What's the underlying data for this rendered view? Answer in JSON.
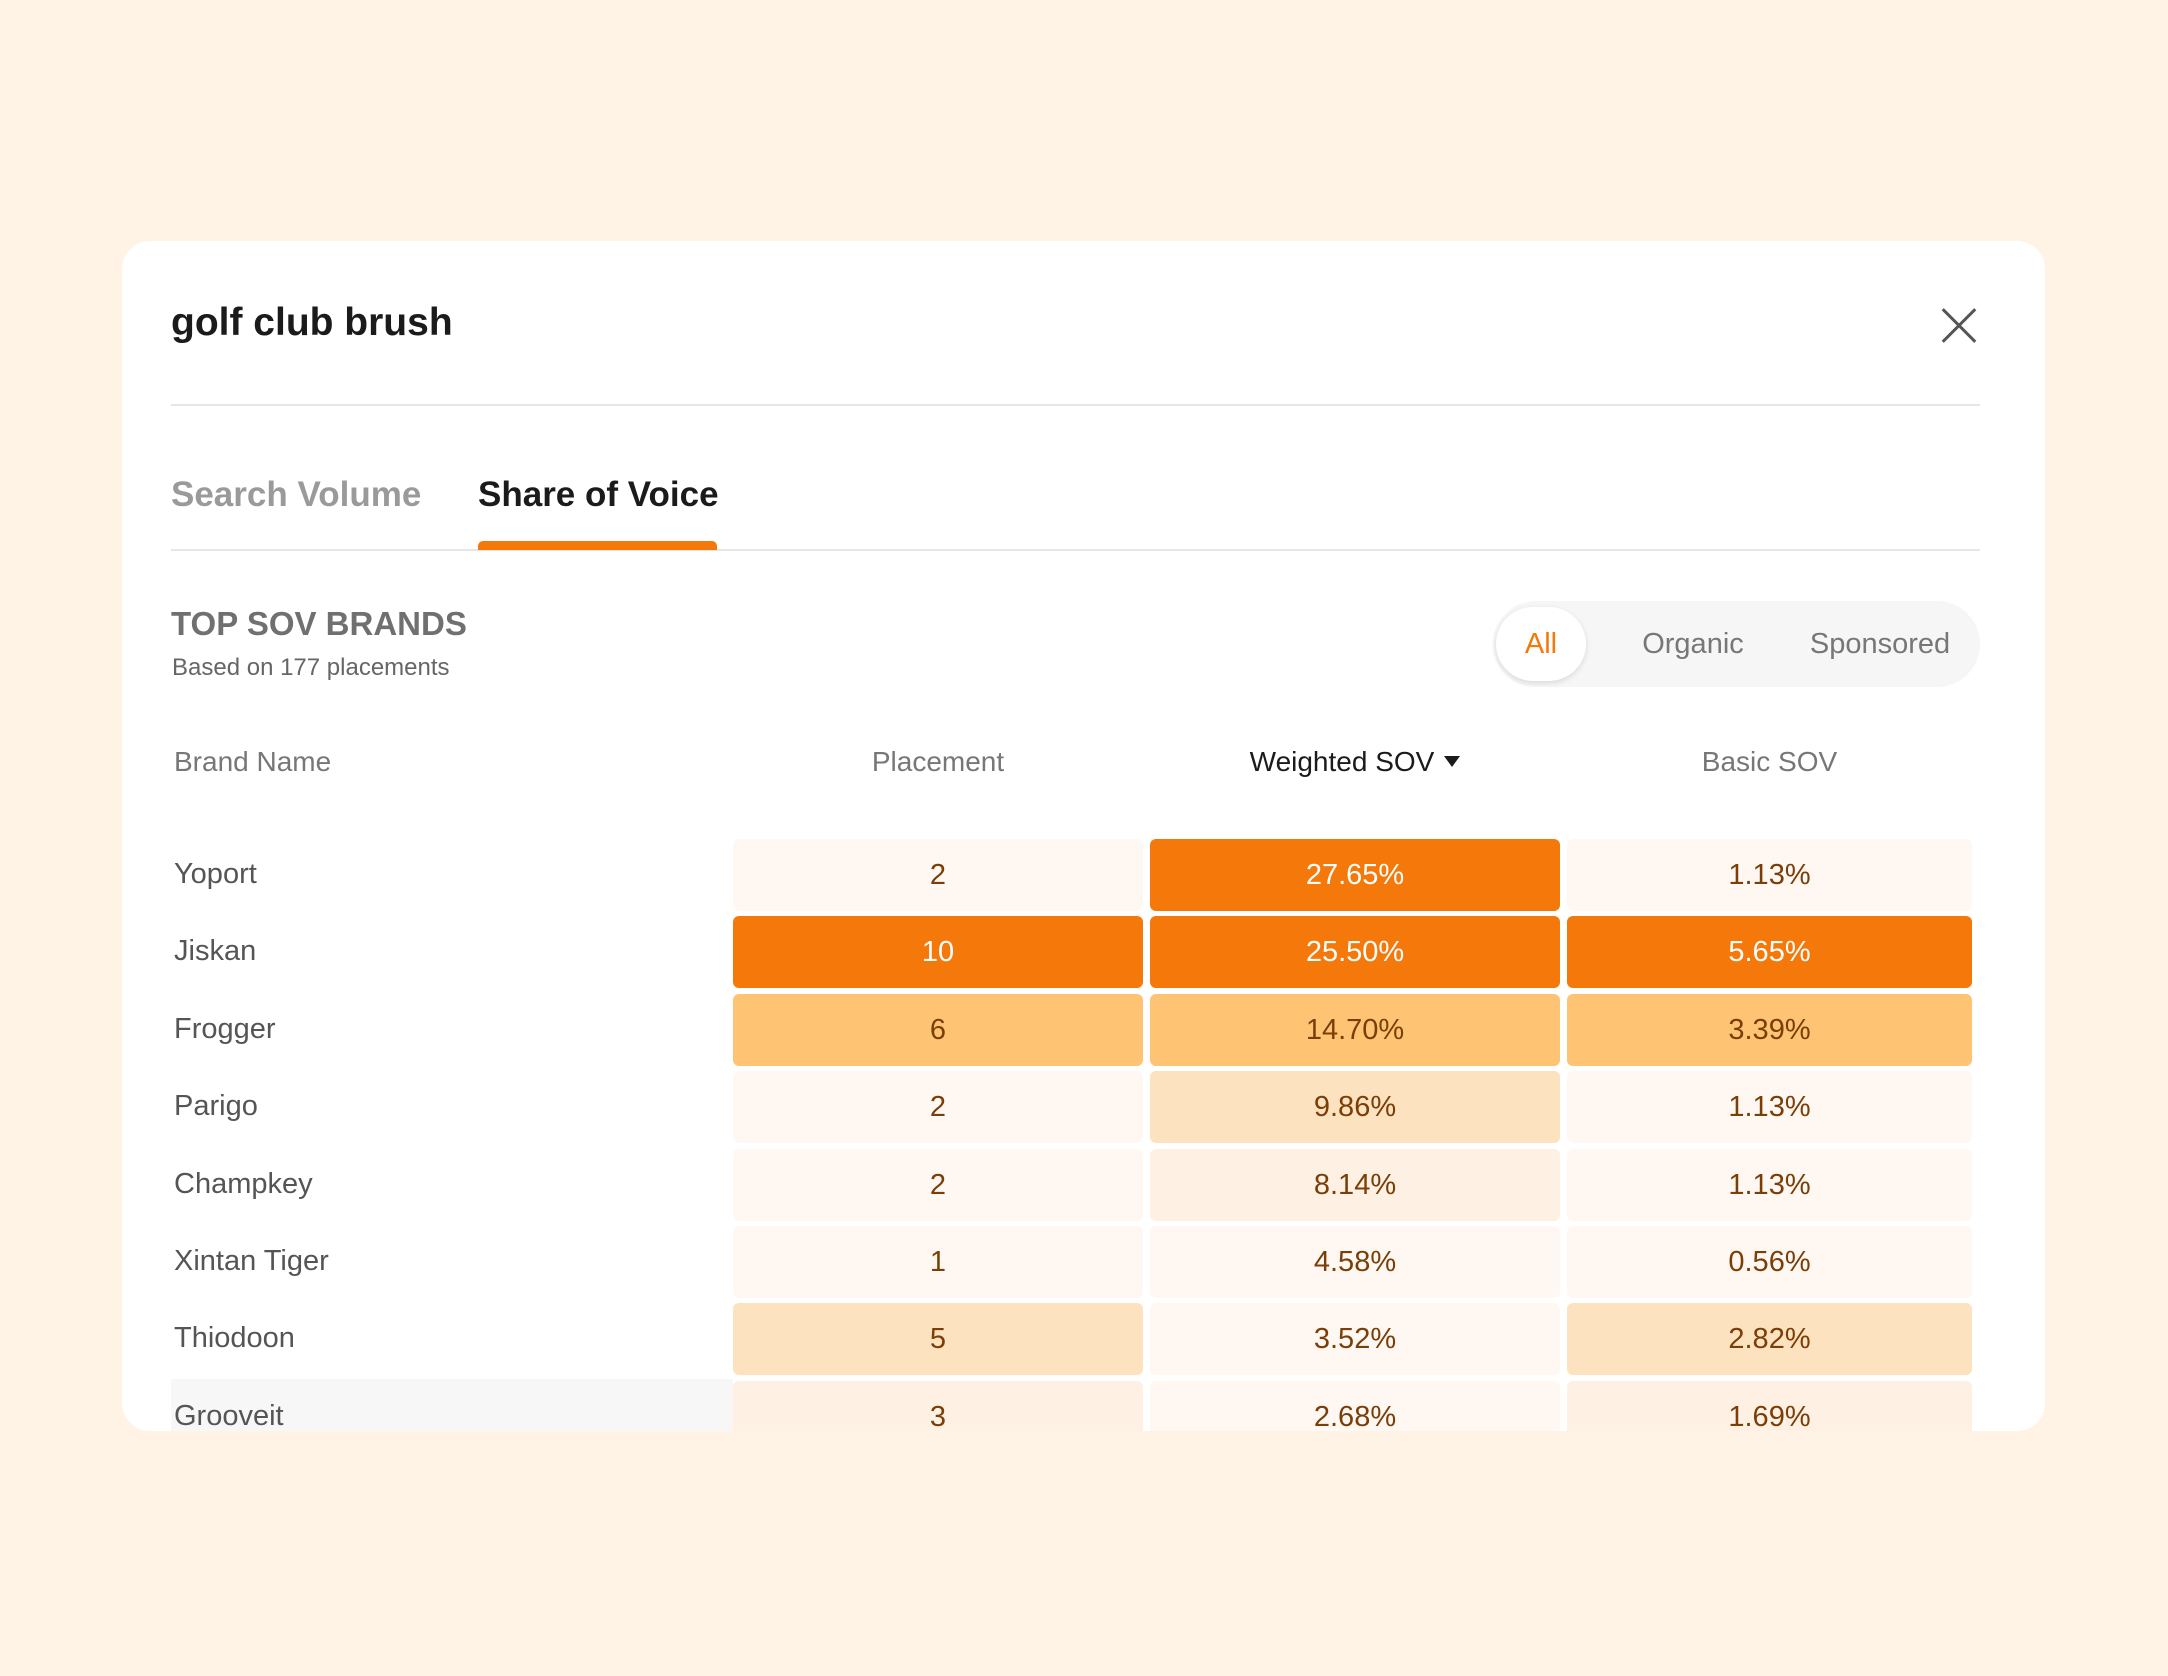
{
  "header": {
    "title": "golf club brush"
  },
  "tabs": [
    "Search Volume",
    "Share of Voice"
  ],
  "active_tab": 1,
  "section": {
    "title": "TOP SOV BRANDS",
    "subtitle": "Based on 177 placements"
  },
  "filters": [
    "All",
    "Organic",
    "Sponsored"
  ],
  "active_filter": 0,
  "table": {
    "columns": [
      "Brand Name",
      "Placement",
      "Weighted SOV",
      "Basic SOV"
    ],
    "sort_column": 2,
    "rows": [
      [
        "Yoport",
        "2",
        "27.65%",
        "1.13%"
      ],
      [
        "Jiskan",
        "10",
        "25.50%",
        "5.65%"
      ],
      [
        "Frogger",
        "6",
        "14.70%",
        "3.39%"
      ],
      [
        "Parigo",
        "2",
        "9.86%",
        "1.13%"
      ],
      [
        "Champkey",
        "2",
        "8.14%",
        "1.13%"
      ],
      [
        "Xintan Tiger",
        "1",
        "4.58%",
        "0.56%"
      ],
      [
        "Thiodoon",
        "5",
        "3.52%",
        "2.82%"
      ],
      [
        "Grooveit",
        "3",
        "2.68%",
        "1.69%"
      ]
    ]
  }
}
